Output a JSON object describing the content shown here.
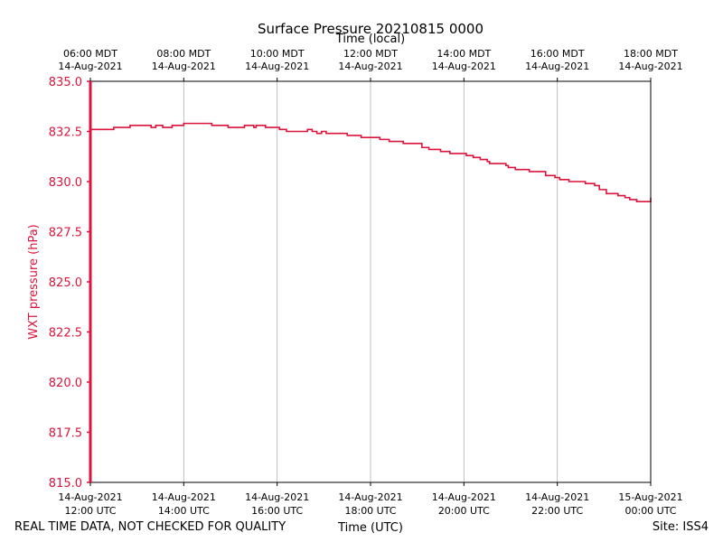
{
  "chart_data": {
    "type": "line",
    "title": "Surface Pressure 20210815 0000",
    "xlabel": "Time (UTC)",
    "xlabel_top": "Time (local)",
    "ylabel": "WXT pressure (hPa)",
    "footer_left": "REAL TIME DATA, NOT CHECKED FOR QUALITY",
    "footer_right": "Site: ISS4",
    "xlim_hours": [
      0,
      12
    ],
    "ylim": [
      815.0,
      835.0
    ],
    "yticks": [
      "835.0",
      "832.5",
      "830.0",
      "827.5",
      "825.0",
      "822.5",
      "820.0",
      "817.5",
      "815.0"
    ],
    "ytick_values": [
      835.0,
      832.5,
      830.0,
      827.5,
      825.0,
      822.5,
      820.0,
      817.5,
      815.0
    ],
    "xtick_hours": [
      0,
      2,
      4,
      6,
      8,
      10,
      12
    ],
    "xticks_utc": [
      {
        "date": "14-Aug-2021",
        "time": "12:00 UTC"
      },
      {
        "date": "14-Aug-2021",
        "time": "14:00 UTC"
      },
      {
        "date": "14-Aug-2021",
        "time": "16:00 UTC"
      },
      {
        "date": "14-Aug-2021",
        "time": "18:00 UTC"
      },
      {
        "date": "14-Aug-2021",
        "time": "20:00 UTC"
      },
      {
        "date": "14-Aug-2021",
        "time": "22:00 UTC"
      },
      {
        "date": "15-Aug-2021",
        "time": "00:00 UTC"
      }
    ],
    "xticks_local": [
      {
        "time": "06:00 MDT",
        "date": "14-Aug-2021"
      },
      {
        "time": "08:00 MDT",
        "date": "14-Aug-2021"
      },
      {
        "time": "10:00 MDT",
        "date": "14-Aug-2021"
      },
      {
        "time": "12:00 MDT",
        "date": "14-Aug-2021"
      },
      {
        "time": "14:00 MDT",
        "date": "14-Aug-2021"
      },
      {
        "time": "16:00 MDT",
        "date": "14-Aug-2021"
      },
      {
        "time": "18:00 MDT",
        "date": "14-Aug-2021"
      }
    ],
    "grid": "vertical",
    "series": [
      {
        "name": "WXT pressure",
        "color": "#dc143c",
        "x_hours": [
          0,
          0.25,
          0.5,
          0.55,
          0.8,
          0.85,
          1.0,
          1.05,
          1.2,
          1.3,
          1.4,
          1.55,
          1.75,
          1.85,
          2.0,
          2.1,
          2.3,
          2.6,
          2.7,
          2.75,
          2.85,
          2.95,
          3.0,
          3.05,
          3.1,
          3.2,
          3.3,
          3.5,
          3.55,
          3.75,
          3.85,
          4.0,
          4.05,
          4.15,
          4.2,
          4.3,
          4.55,
          4.65,
          4.75,
          4.85,
          4.95,
          5.05,
          5.15,
          5.2,
          5.35,
          5.5,
          5.7,
          5.8,
          5.95,
          6.05,
          6.2,
          6.3,
          6.4,
          6.7,
          6.85,
          7.1,
          7.25,
          7.5,
          7.7,
          7.95,
          8.05,
          8.2,
          8.35,
          8.5,
          8.55,
          8.7,
          8.9,
          8.95,
          9.1,
          9.25,
          9.4,
          9.5,
          9.75,
          9.95,
          10.05,
          10.2,
          10.25,
          10.35,
          10.5,
          10.6,
          10.8,
          10.9,
          11.05,
          11.2,
          11.3,
          11.45,
          11.55,
          11.7,
          12.0
        ],
        "values": [
          832.6,
          832.6,
          832.7,
          832.7,
          832.7,
          832.8,
          832.8,
          832.8,
          832.8,
          832.7,
          832.8,
          832.7,
          832.8,
          832.8,
          832.9,
          832.9,
          832.9,
          832.8,
          832.8,
          832.8,
          832.8,
          832.7,
          832.7,
          832.7,
          832.7,
          832.7,
          832.8,
          832.7,
          832.8,
          832.7,
          832.7,
          832.7,
          832.6,
          832.6,
          832.5,
          832.5,
          832.5,
          832.6,
          832.5,
          832.4,
          832.5,
          832.4,
          832.4,
          832.4,
          832.4,
          832.3,
          832.3,
          832.2,
          832.2,
          832.2,
          832.1,
          832.1,
          832.0,
          831.9,
          831.9,
          831.7,
          831.6,
          831.5,
          831.4,
          831.4,
          831.3,
          831.2,
          831.1,
          831.0,
          830.9,
          830.9,
          830.8,
          830.7,
          830.6,
          830.6,
          830.5,
          830.5,
          830.3,
          830.2,
          830.1,
          830.1,
          830.0,
          830.0,
          830.0,
          829.9,
          829.8,
          829.6,
          829.4,
          829.4,
          829.3,
          829.2,
          829.1,
          829.0,
          829.2
        ]
      }
    ]
  }
}
